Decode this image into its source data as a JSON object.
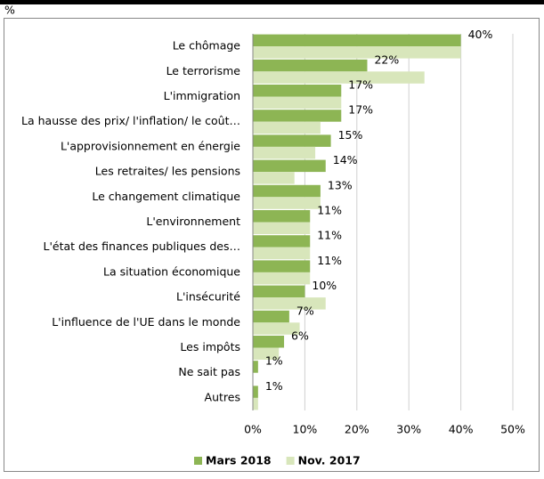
{
  "chart_data": {
    "type": "hbar",
    "axis_label": "%",
    "categories": [
      "Le chômage",
      "Le terrorisme",
      "L'immigration",
      "La hausse des prix/ l'inflation/ le coût…",
      "L'approvisionnement en énergie",
      "Les retraites/ les pensions",
      "Le changement climatique",
      "L'environnement",
      "L'état des finances publiques des…",
      "La situation économique",
      "L'insécurité",
      "L'influence de l'UE dans le monde",
      "Les impôts",
      "Ne sait pas",
      "Autres"
    ],
    "series": [
      {
        "name": "Mars 2018",
        "color": "#8db554",
        "values": [
          40,
          22,
          17,
          17,
          15,
          14,
          13,
          11,
          11,
          11,
          10,
          7,
          6,
          1,
          1
        ],
        "value_labels": [
          "40%",
          "22%",
          "17%",
          "17%",
          "15%",
          "14%",
          "13%",
          "11%",
          "11%",
          "11%",
          "10%",
          "7%",
          "6%",
          "1%",
          "1%"
        ]
      },
      {
        "name": "Nov. 2017",
        "color": "#d8e6bb",
        "values": [
          40,
          33,
          17,
          13,
          12,
          8,
          13,
          11,
          11,
          11,
          14,
          9,
          5,
          0,
          1
        ]
      }
    ],
    "xlim": [
      0,
      50
    ],
    "xticks": [
      {
        "value": 0,
        "label": "0%"
      },
      {
        "value": 10,
        "label": "10%"
      },
      {
        "value": 20,
        "label": "20%"
      },
      {
        "value": 30,
        "label": "30%"
      },
      {
        "value": 40,
        "label": "40%"
      },
      {
        "value": 50,
        "label": "50%"
      }
    ],
    "grid": true
  }
}
